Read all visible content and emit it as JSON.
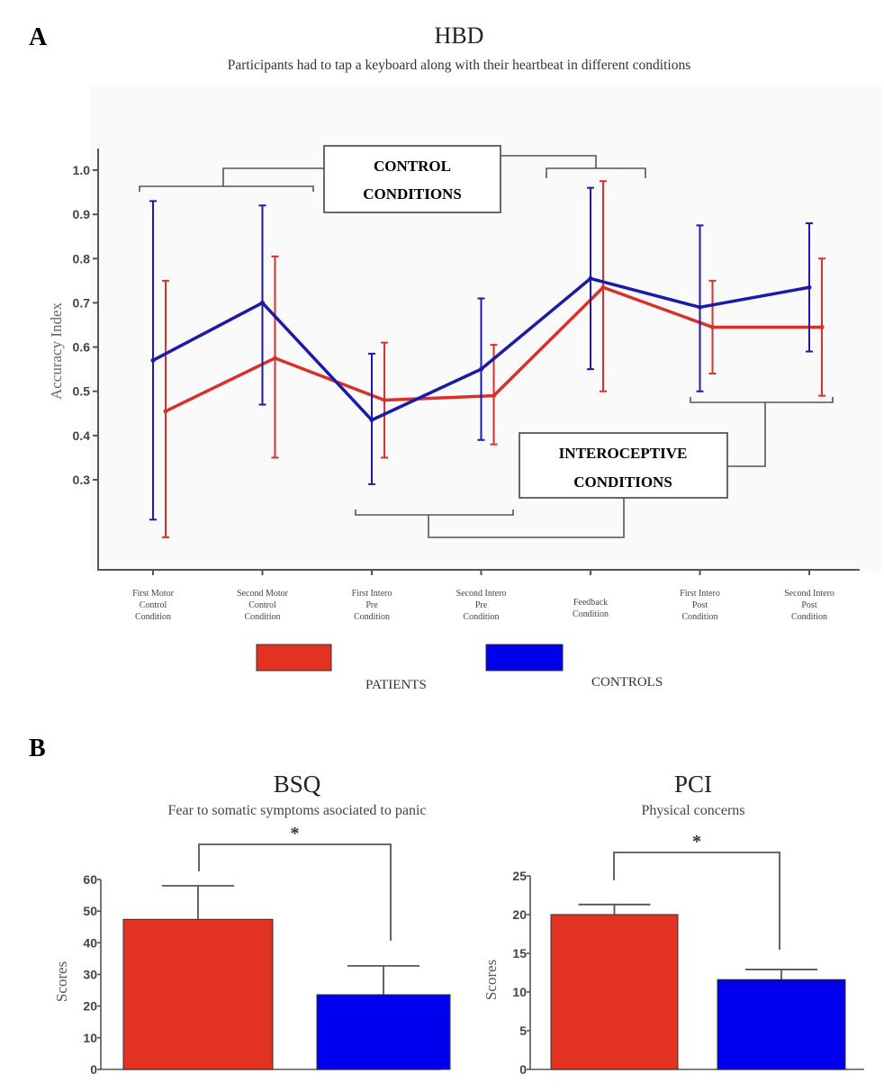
{
  "colors": {
    "patients": "#d9302a",
    "controls": "#1b1ba8",
    "patients_bar": "#e23222",
    "controls_bar": "#0000ee",
    "axis": "#555555"
  },
  "panel_a": {
    "letter": "A",
    "title": "HBD",
    "subtitle": "Participants had to tap a keyboard along with their heartbeat in different conditions",
    "box_control": [
      "CONTROL",
      "CONDITIONS"
    ],
    "box_intero": [
      "INTEROCEPTIVE",
      "CONDITIONS"
    ]
  },
  "legend": {
    "patients": "PATIENTS",
    "controls": "CONTROLS"
  },
  "panel_b": {
    "letter": "B"
  },
  "chart_data": [
    {
      "type": "line",
      "title": "HBD",
      "ylabel": "Accuracy Index",
      "ylim": [
        0.1,
        1.05
      ],
      "yticks": [
        "0.3",
        "0.4",
        "0.5",
        "0.6",
        "0.7",
        "0.8",
        "0.9",
        "1.0"
      ],
      "categories": [
        [
          "First Motor",
          "Control",
          "Condition"
        ],
        [
          "Second Motor",
          "Control",
          "Condition"
        ],
        [
          "First Intero",
          "Pre",
          "Condition"
        ],
        [
          "Second Intero",
          "Pre",
          "Condition"
        ],
        [
          "Feedback",
          "Condition"
        ],
        [
          "First Intero",
          "Post",
          "Condition"
        ],
        [
          "Second Intero",
          "Post",
          "Condition"
        ]
      ],
      "series": [
        {
          "name": "PATIENTS",
          "values": [
            0.455,
            0.575,
            0.48,
            0.49,
            0.735,
            0.645,
            0.645
          ],
          "err_low": [
            0.17,
            0.35,
            0.35,
            0.38,
            0.5,
            0.54,
            0.49
          ],
          "err_high": [
            0.75,
            0.805,
            0.61,
            0.605,
            0.975,
            0.75,
            0.8
          ]
        },
        {
          "name": "CONTROLS",
          "values": [
            0.57,
            0.7,
            0.435,
            0.55,
            0.755,
            0.69,
            0.735
          ],
          "err_low": [
            0.21,
            0.47,
            0.29,
            0.39,
            0.55,
            0.5,
            0.59
          ],
          "err_high": [
            0.93,
            0.92,
            0.585,
            0.71,
            0.96,
            0.875,
            0.88
          ]
        }
      ]
    },
    {
      "type": "bar",
      "title": "BSQ",
      "subtitle": "Fear to somatic symptoms asociated to panic",
      "ylabel": "Scores",
      "ylim": [
        0,
        60
      ],
      "yticks": [
        "0",
        "10",
        "20",
        "30",
        "40",
        "50",
        "60"
      ],
      "categories": [
        "PATIENTS",
        "CONTROLS"
      ],
      "values": [
        47.4,
        23.6
      ],
      "err_high": [
        58,
        32.7
      ],
      "significance": "*"
    },
    {
      "type": "bar",
      "title": "PCI",
      "subtitle": "Physical concerns",
      "ylabel": "Scores",
      "ylim": [
        0,
        25
      ],
      "yticks": [
        "0",
        "5",
        "10",
        "15",
        "20",
        "25"
      ],
      "categories": [
        "PATIENTS",
        "CONTROLS"
      ],
      "values": [
        20.0,
        11.6
      ],
      "err_high": [
        21.3,
        12.9
      ],
      "significance": "*"
    }
  ]
}
